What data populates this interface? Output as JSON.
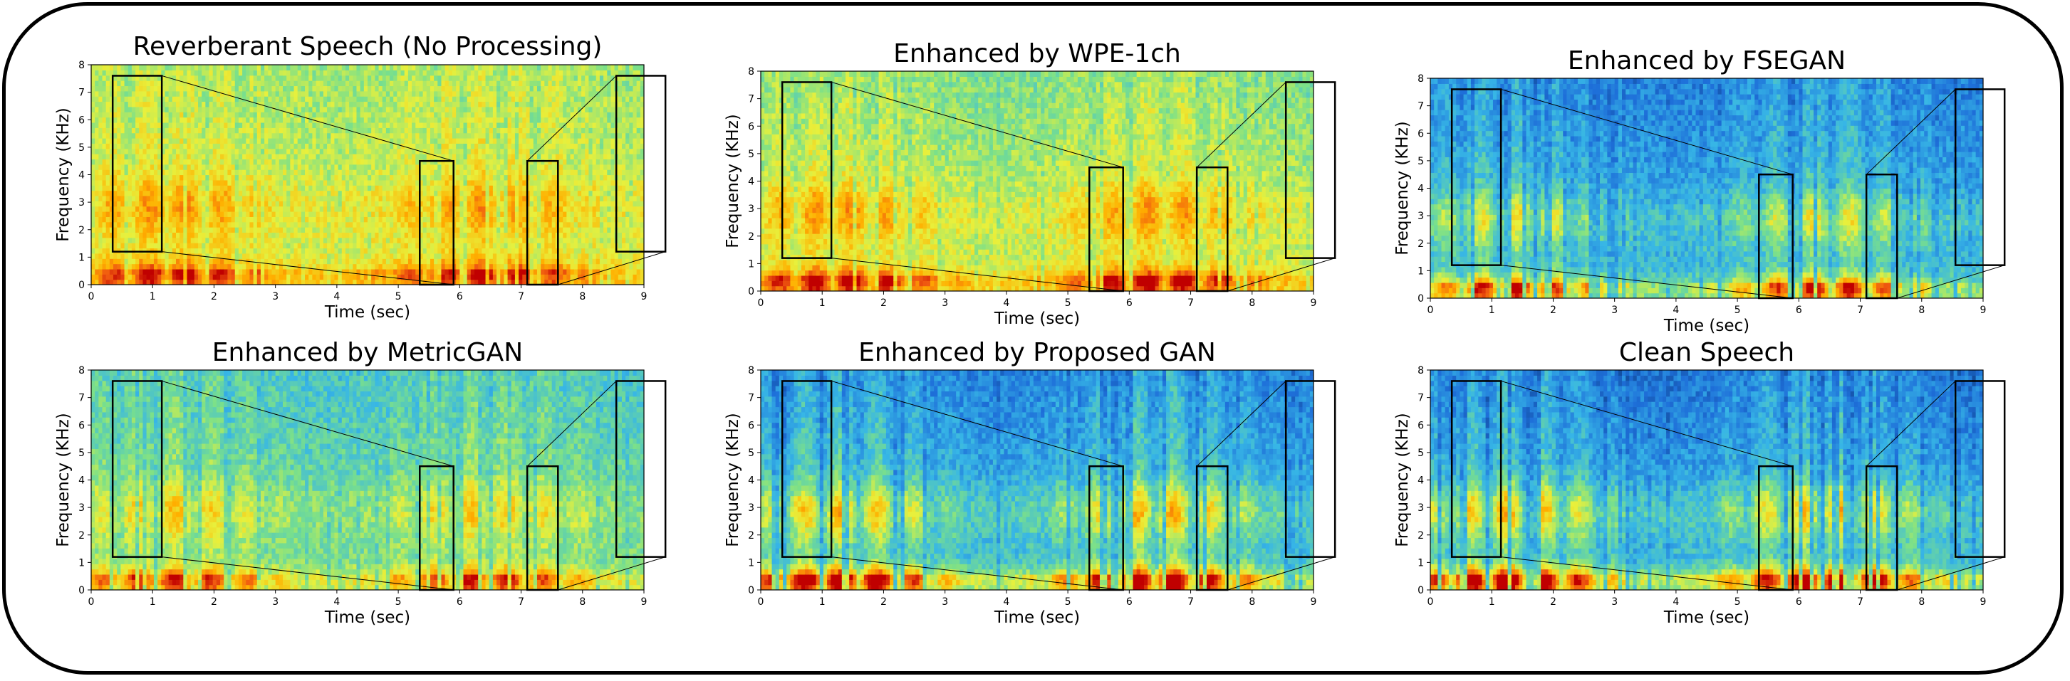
{
  "figure": "spectrogram comparison grid",
  "colors": {
    "frame": "#000000",
    "colormap": [
      "#08306b",
      "#1e6fd9",
      "#37b6e6",
      "#7be08a",
      "#e8f03c",
      "#ffb000",
      "#f05a10",
      "#c00000"
    ]
  },
  "chart_data": [
    {
      "type": "heatmap",
      "title": "Reverberant Speech (No Processing)",
      "xlabel": "Time (sec)",
      "ylabel": "Frequency (KHz)",
      "xlim": [
        0,
        9
      ],
      "ylim": [
        0,
        8
      ],
      "xticks": [
        "0",
        "1",
        "2",
        "3",
        "4",
        "5",
        "6",
        "7",
        "8",
        "9"
      ],
      "yticks": [
        "0",
        "1",
        "2",
        "3",
        "4",
        "5",
        "6",
        "7",
        "8"
      ],
      "zoom_regions": [
        {
          "x": [
            0.35,
            1.15
          ],
          "y": [
            1.2,
            7.6
          ]
        },
        {
          "x": [
            5.35,
            5.9
          ],
          "y": [
            0,
            4.5
          ]
        },
        {
          "x": [
            7.1,
            7.6
          ],
          "y": [
            0,
            4.5
          ]
        },
        {
          "x": [
            8.55,
            9.35
          ],
          "y": [
            1.2,
            7.6
          ]
        }
      ],
      "style": {
        "background": 0.55,
        "contrast": 0.3
      }
    },
    {
      "type": "heatmap",
      "title": "Enhanced by WPE-1ch",
      "xlabel": "Time (sec)",
      "ylabel": "Frequency (KHz)",
      "xlim": [
        0,
        9
      ],
      "ylim": [
        0,
        8
      ],
      "xticks": [
        "0",
        "1",
        "2",
        "3",
        "4",
        "5",
        "6",
        "7",
        "8",
        "9"
      ],
      "yticks": [
        "0",
        "1",
        "2",
        "3",
        "4",
        "5",
        "6",
        "7",
        "8"
      ],
      "zoom_regions": [
        {
          "x": [
            0.35,
            1.15
          ],
          "y": [
            1.2,
            7.6
          ]
        },
        {
          "x": [
            5.35,
            5.9
          ],
          "y": [
            0,
            4.5
          ]
        },
        {
          "x": [
            7.1,
            7.6
          ],
          "y": [
            0,
            4.5
          ]
        },
        {
          "x": [
            8.55,
            9.35
          ],
          "y": [
            1.2,
            7.6
          ]
        }
      ],
      "style": {
        "background": 0.52,
        "contrast": 0.34
      }
    },
    {
      "type": "heatmap",
      "title": "Enhanced by FSEGAN",
      "xlabel": "Time (sec)",
      "ylabel": "Frequency (KHz)",
      "xlim": [
        0,
        9
      ],
      "ylim": [
        0,
        8
      ],
      "xticks": [
        "0",
        "1",
        "2",
        "3",
        "4",
        "5",
        "6",
        "7",
        "8",
        "9"
      ],
      "yticks": [
        "0",
        "1",
        "2",
        "3",
        "4",
        "5",
        "6",
        "7",
        "8"
      ],
      "zoom_regions": [
        {
          "x": [
            0.35,
            1.15
          ],
          "y": [
            1.2,
            7.6
          ]
        },
        {
          "x": [
            5.35,
            5.9
          ],
          "y": [
            0,
            4.5
          ]
        },
        {
          "x": [
            7.1,
            7.6
          ],
          "y": [
            0,
            4.5
          ]
        },
        {
          "x": [
            8.55,
            9.35
          ],
          "y": [
            1.2,
            7.6
          ]
        }
      ],
      "style": {
        "background": 0.28,
        "contrast": 0.45
      }
    },
    {
      "type": "heatmap",
      "title": "Enhanced by MetricGAN",
      "xlabel": "Time (sec)",
      "ylabel": "Frequency (KHz)",
      "xlim": [
        0,
        9
      ],
      "ylim": [
        0,
        8
      ],
      "xticks": [
        "0",
        "1",
        "2",
        "3",
        "4",
        "5",
        "6",
        "7",
        "8",
        "9"
      ],
      "yticks": [
        "0",
        "1",
        "2",
        "3",
        "4",
        "5",
        "6",
        "7",
        "8"
      ],
      "zoom_regions": [
        {
          "x": [
            0.35,
            1.15
          ],
          "y": [
            1.2,
            7.6
          ]
        },
        {
          "x": [
            5.35,
            5.9
          ],
          "y": [
            0,
            4.5
          ]
        },
        {
          "x": [
            7.1,
            7.6
          ],
          "y": [
            0,
            4.5
          ]
        },
        {
          "x": [
            8.55,
            9.35
          ],
          "y": [
            1.2,
            7.6
          ]
        }
      ],
      "style": {
        "background": 0.42,
        "contrast": 0.35
      }
    },
    {
      "type": "heatmap",
      "title": "Enhanced by Proposed GAN",
      "xlabel": "Time (sec)",
      "ylabel": "Frequency (KHz)",
      "xlim": [
        0,
        9
      ],
      "ylim": [
        0,
        8
      ],
      "xticks": [
        "0",
        "1",
        "2",
        "3",
        "4",
        "5",
        "6",
        "7",
        "8",
        "9"
      ],
      "yticks": [
        "0",
        "1",
        "2",
        "3",
        "4",
        "5",
        "6",
        "7",
        "8"
      ],
      "zoom_regions": [
        {
          "x": [
            0.35,
            1.15
          ],
          "y": [
            1.2,
            7.6
          ]
        },
        {
          "x": [
            5.35,
            5.9
          ],
          "y": [
            0,
            4.5
          ]
        },
        {
          "x": [
            7.1,
            7.6
          ],
          "y": [
            0,
            4.5
          ]
        },
        {
          "x": [
            8.55,
            9.35
          ],
          "y": [
            1.2,
            7.6
          ]
        }
      ],
      "style": {
        "background": 0.3,
        "contrast": 0.55
      }
    },
    {
      "type": "heatmap",
      "title": "Clean Speech",
      "xlabel": "Time (sec)",
      "ylabel": "Frequency (KHz)",
      "xlim": [
        0,
        9
      ],
      "ylim": [
        0,
        8
      ],
      "xticks": [
        "0",
        "1",
        "2",
        "3",
        "4",
        "5",
        "6",
        "7",
        "8",
        "9"
      ],
      "yticks": [
        "0",
        "1",
        "2",
        "3",
        "4",
        "5",
        "6",
        "7",
        "8"
      ],
      "zoom_regions": [
        {
          "x": [
            0.35,
            1.15
          ],
          "y": [
            1.2,
            7.6
          ]
        },
        {
          "x": [
            5.35,
            5.9
          ],
          "y": [
            0,
            4.5
          ]
        },
        {
          "x": [
            7.1,
            7.6
          ],
          "y": [
            0,
            4.5
          ]
        },
        {
          "x": [
            8.55,
            9.35
          ],
          "y": [
            1.2,
            7.6
          ]
        }
      ],
      "style": {
        "background": 0.28,
        "contrast": 0.58
      }
    }
  ]
}
